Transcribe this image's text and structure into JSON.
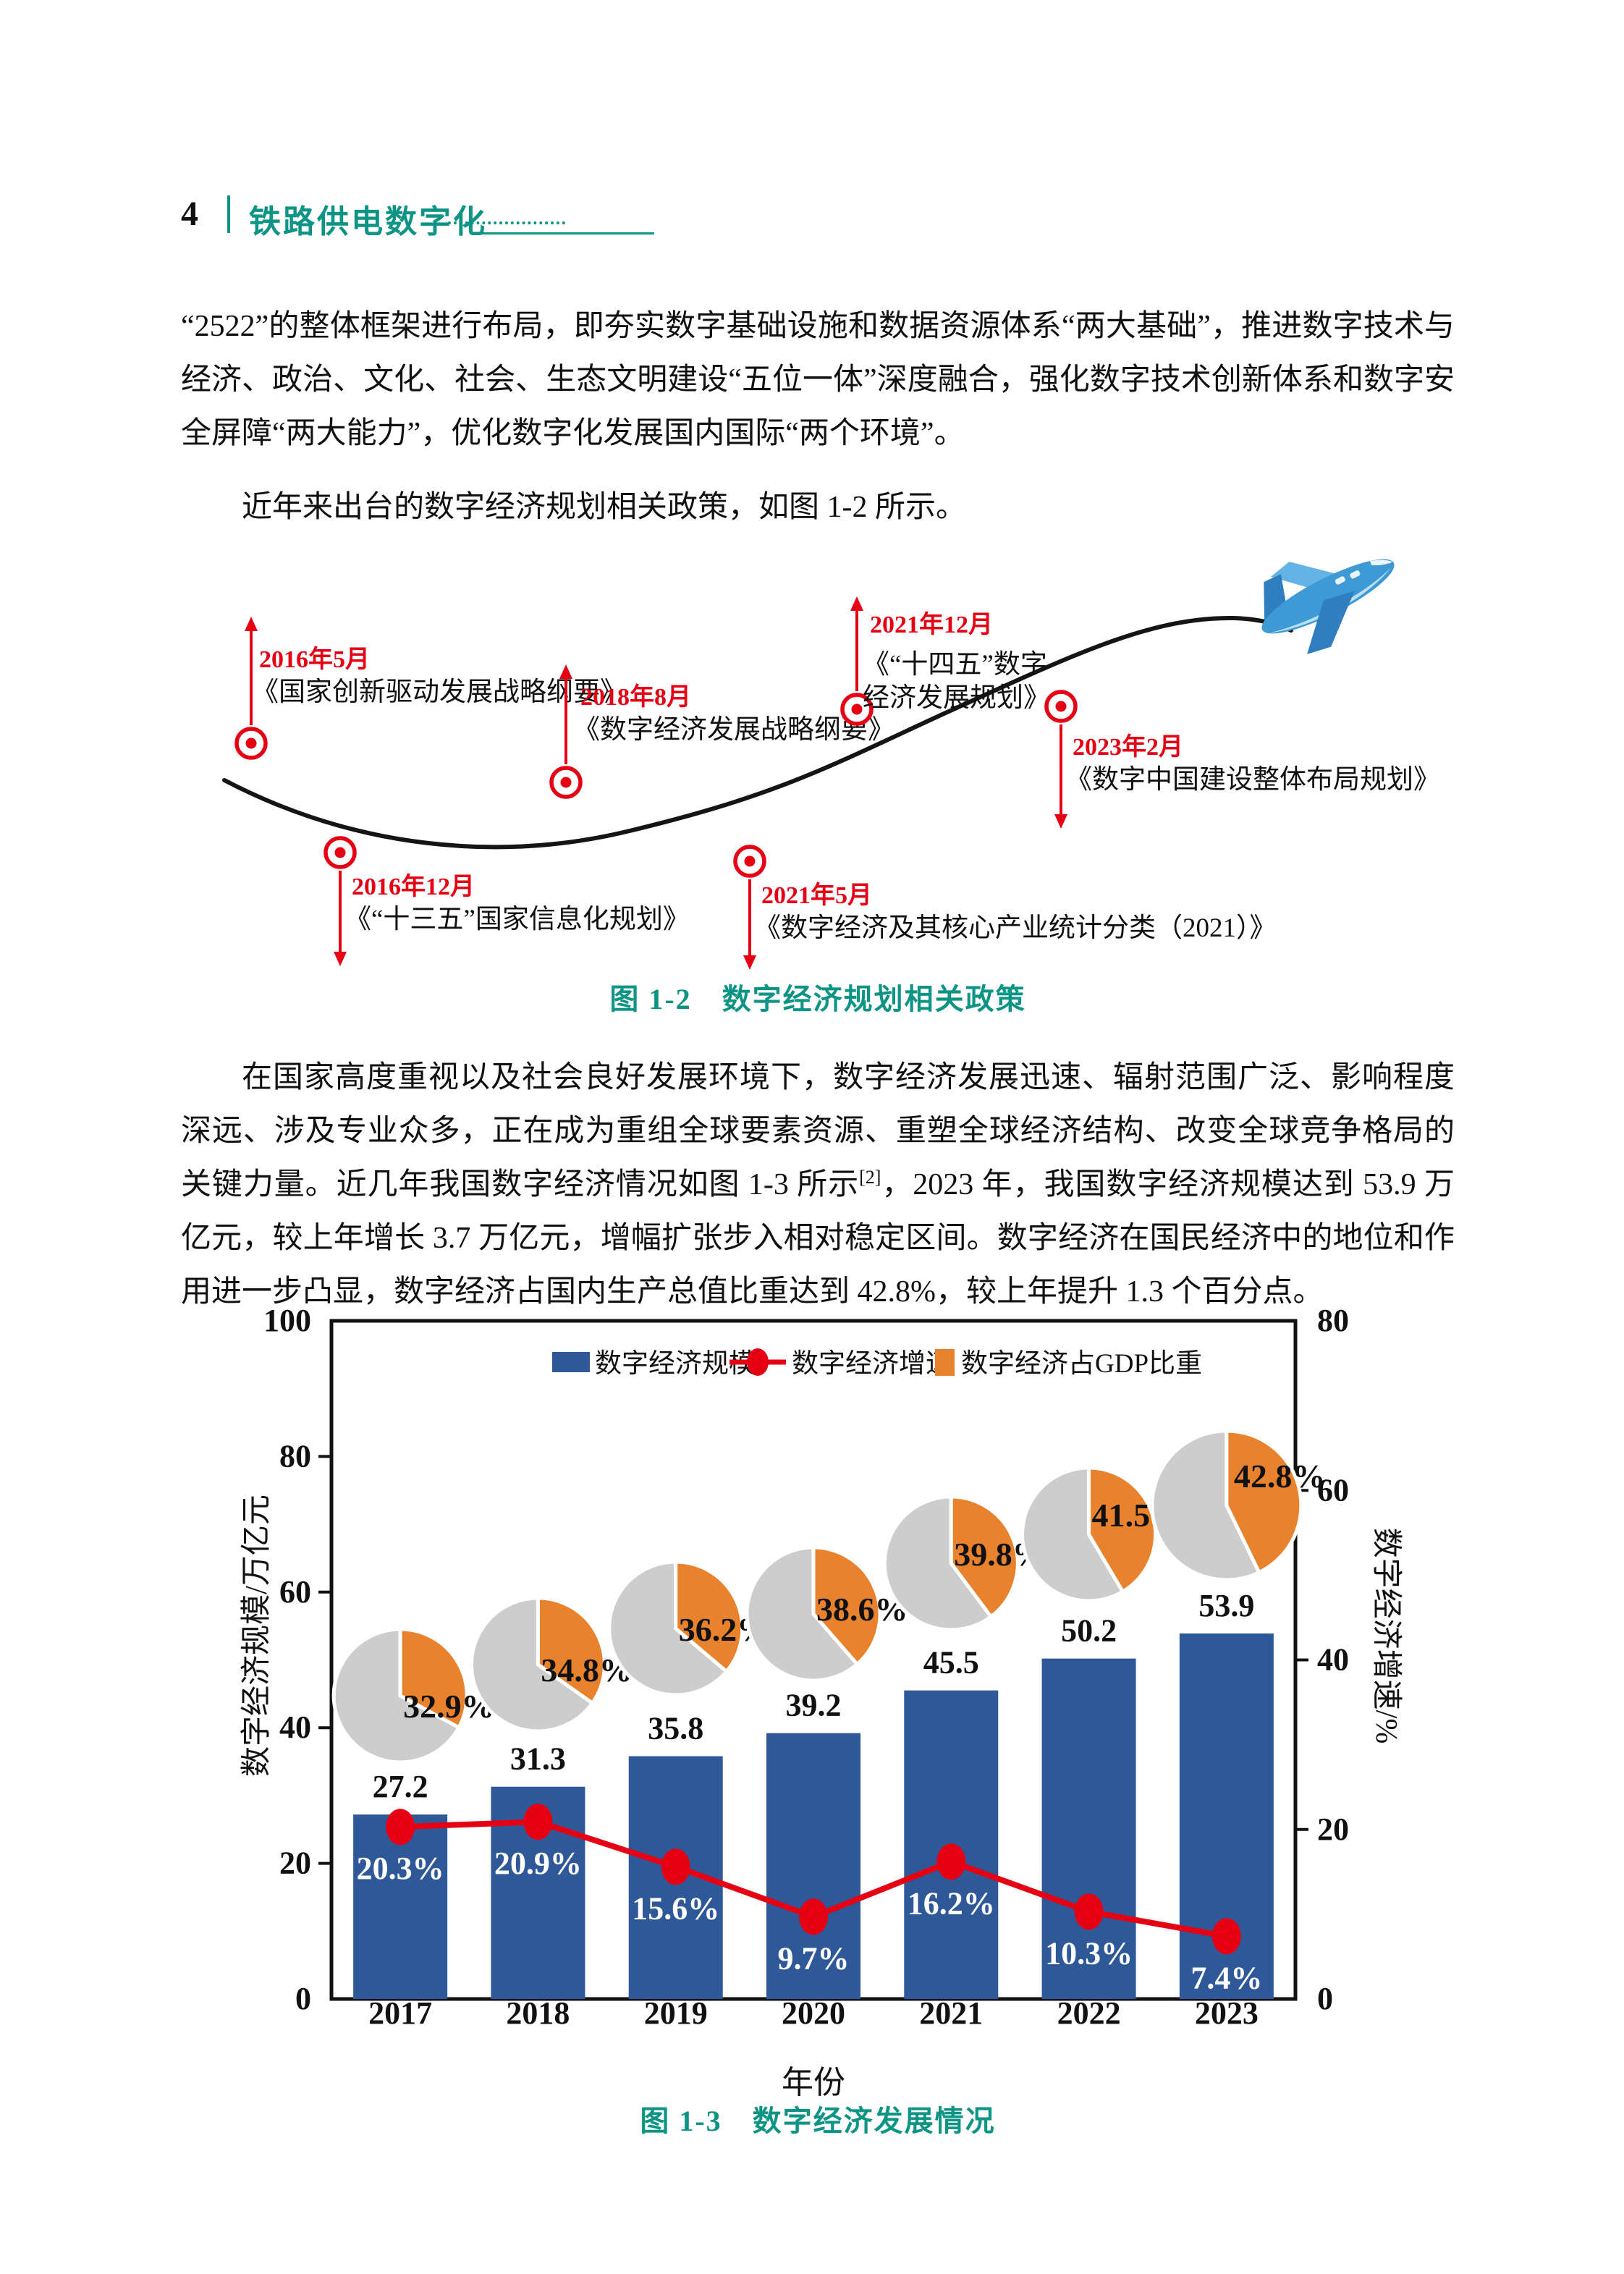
{
  "header": {
    "page_number": "4",
    "book_title": "铁路供电数字化"
  },
  "paragraphs": {
    "p1": "“2522”的整体框架进行布局，即夯实数字基础设施和数据资源体系“两大基础”，推进数字技术与经济、政治、文化、社会、生态文明建设“五位一体”深度融合，强化数字技术创新体系和数字安全屏障“两大能力”，优化数字化发展国内国际“两个环境”。",
    "p2": "近年来出台的数字经济规划相关政策，如图 1-2 所示。",
    "p3_before_ref": "在国家高度重视以及社会良好发展环境下，数字经济发展迅速、辐射范围广泛、影响程度深远、涉及专业众多，正在成为重组全球要素资源、重塑全球经济结构、改变全球竞争格局的关键力量。近几年我国数字经济情况如图 1-3 所示",
    "p3_ref": "[2]",
    "p3_after_ref": "，2023 年，我国数字经济规模达到 53.9 万亿元，较上年增长 3.7 万亿元，增幅扩张步入相对稳定区间。数字经济在国民经济中的地位和作用进一步凸显，数字经济占国内生产总值比重达到 42.8%，较上年提升 1.3 个百分点。"
  },
  "figure_policy": {
    "caption": "图 1-2　数字经济规划相关政策",
    "events": [
      {
        "date": "2016年5月",
        "title": "《国家创新驱动发展战略纲要》"
      },
      {
        "date": "2016年12月",
        "title": "《“十三五”国家信息化规划》"
      },
      {
        "date": "2018年8月",
        "title": "《数字经济发展战略纲要》"
      },
      {
        "date": "2021年5月",
        "title": "《数字经济及其核心产业统计分类（2021）》"
      },
      {
        "date": "2021年12月",
        "title_line1": "《“十四五”数字",
        "title_line2": "经济发展规划》"
      },
      {
        "date": "2023年2月",
        "title": "《数字中国建设整体布局规划》"
      }
    ]
  },
  "chart_figure": {
    "caption": "图 1-3　数字经济发展情况"
  },
  "chart_data": {
    "type": "bar+line+pie",
    "categories": [
      "2017",
      "2018",
      "2019",
      "2020",
      "2021",
      "2022",
      "2023"
    ],
    "series": [
      {
        "name": "数字经济规模",
        "type": "bar",
        "unit": "万亿元",
        "axis": "left",
        "values": [
          27.2,
          31.3,
          35.8,
          39.2,
          45.5,
          50.2,
          53.9
        ]
      },
      {
        "name": "数字经济增速",
        "type": "line",
        "unit": "%",
        "axis": "right",
        "values": [
          20.3,
          20.9,
          15.6,
          9.7,
          16.2,
          10.3,
          7.4
        ]
      },
      {
        "name": "数字经济占GDP比重",
        "type": "pie",
        "unit": "%",
        "values": [
          32.9,
          34.8,
          36.2,
          38.6,
          39.8,
          41.5,
          42.8
        ]
      }
    ],
    "left_axis": {
      "label": "数字经济规模/万亿元",
      "ticks": [
        0,
        20,
        40,
        60,
        80,
        100
      ],
      "range": [
        0,
        100
      ]
    },
    "right_axis": {
      "label": "数字经济增速/%",
      "ticks": [
        0,
        20,
        40,
        60,
        80
      ],
      "range": [
        0,
        80
      ]
    },
    "x_axis": {
      "label": "年份"
    },
    "legend": [
      "数字经济规模",
      "数字经济增速",
      "数字经济占GDP比重"
    ],
    "legend_position": "top-center-inside",
    "grid": false,
    "colors": {
      "bar": "#2e5898",
      "line": "#e60014",
      "pie_orange": "#e8822c",
      "pie_gray": "#cdcdcd",
      "accent_teal": "#0d9485"
    }
  }
}
